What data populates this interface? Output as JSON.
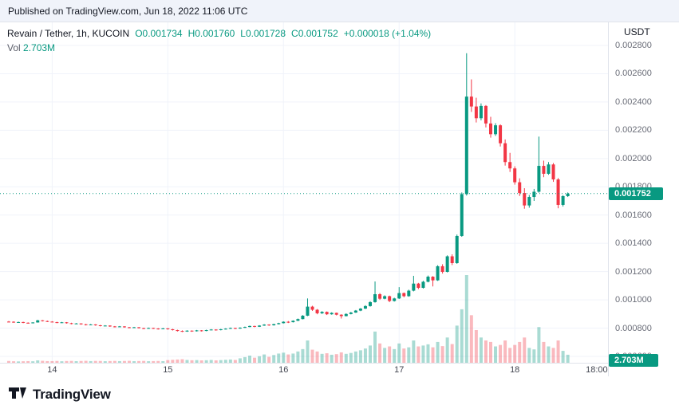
{
  "published_bar": {
    "text": "Published on TradingView.com, Jun 18, 2022 11:06 UTC"
  },
  "legend": {
    "symbol": "Revain / Tether, 1h, KUCOIN",
    "ohlc": {
      "open": "O0.001734",
      "high": "H0.001760",
      "low": "L0.001728",
      "close": "C0.001752",
      "change": "+0.000018 (+1.04%)"
    },
    "vol_label": "Vol",
    "vol_value": "2.703M"
  },
  "price_axis": {
    "currency": "USDT",
    "labels": [
      "0.002800",
      "0.002600",
      "0.002400",
      "0.002200",
      "0.002000",
      "0.001800",
      "0.001600",
      "0.001400",
      "0.001200",
      "0.001000",
      "0.000800",
      "0.000600"
    ],
    "last_price_badge": "0.001752",
    "volume_badge": "2.703M"
  },
  "time_axis": {
    "ticks": [
      {
        "label": "14",
        "candle_index": 9
      },
      {
        "label": "15",
        "candle_index": 33
      },
      {
        "label": "16",
        "candle_index": 57
      },
      {
        "label": "17",
        "candle_index": 81
      },
      {
        "label": "18",
        "candle_index": 105
      },
      {
        "label": "18:00",
        "candle_index": 122
      }
    ]
  },
  "footer": {
    "brand": "TradingView"
  },
  "colors": {
    "up": "#089981",
    "down": "#f23645",
    "vol_up": "rgba(8,153,129,0.35)",
    "vol_down": "rgba(242,54,69,0.35)",
    "grid": "#f0f3fa",
    "badge_bg": "#089981",
    "accent_text": "#089981"
  },
  "chart_data": {
    "type": "candlestick+volume",
    "title": "Revain / Tether, 1h, KUCOIN",
    "interval": "1h",
    "exchange": "KUCOIN",
    "quote_currency": "USDT",
    "last_values": {
      "open": 0.001734,
      "high": 0.00176,
      "low": 0.001728,
      "close": 0.001752,
      "change": "+0.000018",
      "change_pct": "+1.04%",
      "volume": "2.703M"
    },
    "ylim": [
      0.0006,
      0.0028
    ],
    "x_tick_labels": [
      "14",
      "15",
      "16",
      "17",
      "18",
      "18:00"
    ],
    "legend_position": "top-left",
    "grid": true,
    "price_scale": 1e-06,
    "candle_fields": [
      "open_micro_usdt",
      "high_micro_usdt",
      "low_micro_usdt",
      "close_micro_usdt",
      "volume_millions"
    ],
    "candles": [
      [
        846,
        850,
        842,
        845,
        0.6
      ],
      [
        845,
        848,
        838,
        840,
        0.5
      ],
      [
        840,
        846,
        838,
        843,
        0.45
      ],
      [
        843,
        845,
        835,
        838,
        0.5
      ],
      [
        838,
        841,
        832,
        835,
        0.55
      ],
      [
        835,
        842,
        833,
        840,
        0.5
      ],
      [
        840,
        858,
        839,
        855,
        0.8
      ],
      [
        855,
        857,
        847,
        850,
        0.65
      ],
      [
        850,
        853,
        843,
        846,
        0.55
      ],
      [
        846,
        849,
        840,
        842,
        0.55
      ],
      [
        842,
        845,
        835,
        838,
        0.6
      ],
      [
        838,
        844,
        836,
        841,
        0.5
      ],
      [
        841,
        843,
        832,
        835,
        0.58
      ],
      [
        835,
        838,
        827,
        830,
        0.62
      ],
      [
        830,
        836,
        828,
        833,
        0.53
      ],
      [
        833,
        835,
        824,
        827,
        0.6
      ],
      [
        827,
        830,
        819,
        822,
        0.65
      ],
      [
        822,
        829,
        820,
        826,
        0.56
      ],
      [
        826,
        828,
        817,
        820,
        0.62
      ],
      [
        820,
        823,
        812,
        815,
        0.6
      ],
      [
        815,
        821,
        813,
        818,
        0.52
      ],
      [
        818,
        820,
        809,
        812,
        0.58
      ],
      [
        812,
        815,
        805,
        808,
        0.62
      ],
      [
        808,
        815,
        806,
        812,
        0.55
      ],
      [
        812,
        814,
        803,
        806,
        0.6
      ],
      [
        806,
        809,
        799,
        802,
        0.65
      ],
      [
        802,
        809,
        800,
        806,
        0.53
      ],
      [
        806,
        808,
        797,
        800,
        0.58
      ],
      [
        800,
        803,
        793,
        797,
        0.62
      ],
      [
        797,
        804,
        795,
        801,
        0.52
      ],
      [
        801,
        803,
        794,
        797,
        0.56
      ],
      [
        797,
        800,
        790,
        794,
        0.6
      ],
      [
        794,
        801,
        792,
        798,
        0.54
      ],
      [
        798,
        800,
        789,
        792,
        0.9
      ],
      [
        792,
        795,
        783,
        786,
        1.0
      ],
      [
        786,
        789,
        776,
        780,
        1.1
      ],
      [
        780,
        784,
        772,
        776,
        1.2
      ],
      [
        776,
        785,
        774,
        782,
        0.95
      ],
      [
        782,
        784,
        774,
        778,
        0.85
      ],
      [
        778,
        787,
        776,
        784,
        0.9
      ],
      [
        784,
        786,
        776,
        780,
        0.8
      ],
      [
        780,
        789,
        778,
        786,
        0.85
      ],
      [
        786,
        793,
        784,
        790,
        0.95
      ],
      [
        790,
        792,
        782,
        786,
        0.8
      ],
      [
        786,
        795,
        784,
        792,
        0.9
      ],
      [
        792,
        799,
        790,
        796,
        1.0
      ],
      [
        796,
        804,
        794,
        801,
        1.1
      ],
      [
        801,
        803,
        793,
        797,
        0.95
      ],
      [
        797,
        806,
        795,
        803,
        1.5
      ],
      [
        803,
        811,
        801,
        808,
        1.9
      ],
      [
        808,
        818,
        806,
        815,
        2.4
      ],
      [
        815,
        817,
        806,
        810,
        1.7
      ],
      [
        810,
        821,
        808,
        818,
        2.2
      ],
      [
        818,
        828,
        816,
        825,
        2.8
      ],
      [
        825,
        827,
        816,
        820,
        2.0
      ],
      [
        820,
        831,
        818,
        828,
        2.6
      ],
      [
        828,
        838,
        826,
        835,
        3.1
      ],
      [
        835,
        848,
        833,
        845,
        3.4
      ],
      [
        845,
        850,
        836,
        842,
        2.8
      ],
      [
        842,
        855,
        840,
        852,
        3.1
      ],
      [
        852,
        868,
        850,
        864,
        3.8
      ],
      [
        864,
        892,
        862,
        888,
        4.6
      ],
      [
        888,
        1010,
        885,
        952,
        7.5
      ],
      [
        952,
        958,
        922,
        930,
        4.4
      ],
      [
        930,
        935,
        898,
        905,
        3.8
      ],
      [
        905,
        920,
        900,
        915,
        3.0
      ],
      [
        915,
        918,
        893,
        898,
        3.2
      ],
      [
        898,
        912,
        895,
        908,
        2.7
      ],
      [
        908,
        910,
        890,
        895,
        2.9
      ],
      [
        895,
        898,
        868,
        885,
        3.5
      ],
      [
        885,
        905,
        883,
        900,
        3.0
      ],
      [
        900,
        915,
        897,
        910,
        3.3
      ],
      [
        910,
        928,
        908,
        924,
        3.8
      ],
      [
        924,
        942,
        920,
        938,
        4.2
      ],
      [
        938,
        962,
        935,
        956,
        4.8
      ],
      [
        956,
        990,
        952,
        984,
        5.8
      ],
      [
        984,
        1130,
        980,
        1040,
        10.5
      ],
      [
        1040,
        1048,
        1000,
        1008,
        6.5
      ],
      [
        1008,
        1032,
        1004,
        1026,
        5.0
      ],
      [
        1026,
        1030,
        984,
        992,
        5.5
      ],
      [
        992,
        1015,
        988,
        1010,
        4.6
      ],
      [
        1010,
        1090,
        1006,
        1048,
        6.5
      ],
      [
        1048,
        1052,
        1018,
        1026,
        4.8
      ],
      [
        1026,
        1072,
        1022,
        1065,
        5.2
      ],
      [
        1065,
        1170,
        1060,
        1115,
        7.5
      ],
      [
        1115,
        1120,
        1076,
        1085,
        5.5
      ],
      [
        1085,
        1135,
        1080,
        1128,
        5.8
      ],
      [
        1128,
        1172,
        1124,
        1164,
        6.2
      ],
      [
        1164,
        1168,
        1095,
        1138,
        5.2
      ],
      [
        1138,
        1245,
        1134,
        1238,
        7.0
      ],
      [
        1238,
        1252,
        1186,
        1198,
        5.6
      ],
      [
        1198,
        1315,
        1194,
        1308,
        8.5
      ],
      [
        1308,
        1322,
        1246,
        1260,
        6.3
      ],
      [
        1260,
        1462,
        1255,
        1452,
        12.5
      ],
      [
        1452,
        1760,
        1446,
        1748,
        18.0
      ],
      [
        1748,
        2745,
        1738,
        2438,
        29.5
      ],
      [
        2438,
        2560,
        2330,
        2368,
        16.0
      ],
      [
        2368,
        2430,
        2255,
        2285,
        11.0
      ],
      [
        2285,
        2390,
        2270,
        2372,
        8.5
      ],
      [
        2372,
        2378,
        2220,
        2248,
        7.5
      ],
      [
        2248,
        2295,
        2148,
        2172,
        7.0
      ],
      [
        2172,
        2250,
        2160,
        2235,
        5.5
      ],
      [
        2235,
        2242,
        2085,
        2108,
        6.0
      ],
      [
        2108,
        2135,
        1950,
        1975,
        7.5
      ],
      [
        1975,
        2040,
        1905,
        1930,
        5.0
      ],
      [
        1930,
        1945,
        1815,
        1832,
        6.0
      ],
      [
        1832,
        1860,
        1735,
        1756,
        7.0
      ],
      [
        1756,
        1790,
        1645,
        1668,
        8.5
      ],
      [
        1668,
        1742,
        1652,
        1728,
        5.0
      ],
      [
        1728,
        1785,
        1700,
        1765,
        4.5
      ],
      [
        1765,
        2155,
        1758,
        1948,
        12.0
      ],
      [
        1948,
        1985,
        1868,
        1892,
        7.0
      ],
      [
        1892,
        1975,
        1885,
        1958,
        5.5
      ],
      [
        1958,
        1968,
        1835,
        1852,
        5.0
      ],
      [
        1852,
        1862,
        1648,
        1672,
        7.5
      ],
      [
        1672,
        1740,
        1660,
        1734,
        4.0
      ],
      [
        1734,
        1760,
        1728,
        1752,
        2.703
      ]
    ]
  }
}
